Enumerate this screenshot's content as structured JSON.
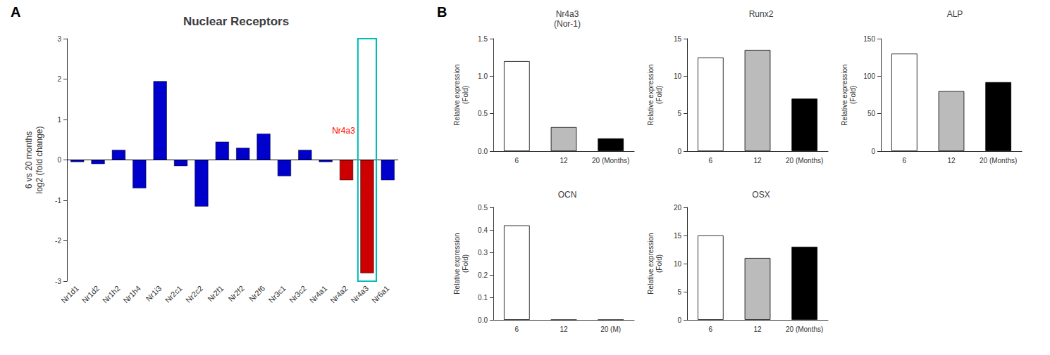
{
  "chart_data": [
    {
      "type": "bar",
      "title": "Nuclear Receptors",
      "ylabel": "6 vs 20 months\nlog2 (fold change)",
      "categories": [
        "Nr1d1",
        "Nr1d2",
        "Nr1h2",
        "Nr1h4",
        "Nr1i3",
        "Nr2c1",
        "Nr2c2",
        "Nr2f1",
        "Nr2f2",
        "Nr2f6",
        "Nr3c1",
        "Nr3c2",
        "Nr4a1",
        "Nr4a2",
        "Nr4a3",
        "Nr6a1"
      ],
      "values": [
        -0.05,
        -0.1,
        0.25,
        -0.7,
        1.95,
        -0.15,
        -1.15,
        0.45,
        0.3,
        0.65,
        -0.4,
        0.25,
        -0.05,
        -0.5,
        -2.8,
        -0.5
      ],
      "colors": [
        "#0000CC",
        "#0000CC",
        "#0000CC",
        "#0000CC",
        "#0000CC",
        "#0000CC",
        "#0000CC",
        "#0000CC",
        "#0000CC",
        "#0000CC",
        "#0000CC",
        "#0000CC",
        "#0000CC",
        "#CC0000",
        "#CC0000",
        "#0000CC"
      ],
      "ylim": [
        -3,
        3
      ],
      "yticks": [
        -3,
        -2,
        -1,
        0,
        1,
        2,
        3
      ],
      "grid": false,
      "annotations": [
        {
          "text": "A"
        },
        {
          "text": "Nr4a3",
          "color": "red",
          "category": "Nr4a3",
          "box_color": "#00BBBB"
        }
      ]
    },
    {
      "type": "bar",
      "title": "Nr4a3\n(Nor-1)",
      "ylabel": "Relative expression\n(Fold)",
      "categories": [
        "6",
        "12",
        "20 (Months)"
      ],
      "values": [
        1.2,
        0.32,
        0.17
      ],
      "colors": [
        "white",
        "#BBBBBB",
        "black"
      ],
      "ylim": [
        0,
        1.5
      ],
      "yticks": [
        {
          "value": 0,
          "label": "0.0"
        },
        0.5,
        {
          "value": 1,
          "label": "1.0"
        },
        1.5
      ],
      "grid": false,
      "annotations": [
        {
          "text": "B"
        }
      ]
    },
    {
      "type": "bar",
      "title": "Runx2",
      "ylabel": "Relative expression\n(Fold)",
      "categories": [
        "6",
        "12",
        "20 (Months)"
      ],
      "values": [
        12.5,
        13.5,
        7.0
      ],
      "colors": [
        "white",
        "#BBBBBB",
        "black"
      ],
      "ylim": [
        0,
        15
      ],
      "yticks": [
        0,
        5,
        10,
        15
      ],
      "grid": false
    },
    {
      "type": "bar",
      "title": "ALP",
      "ylabel": "Relative expression\n(Fold)",
      "categories": [
        "6",
        "12",
        "20 (Months)"
      ],
      "values": [
        130,
        80,
        92
      ],
      "colors": [
        "white",
        "#BBBBBB",
        "black"
      ],
      "ylim": [
        0,
        150
      ],
      "yticks": [
        0,
        50,
        100,
        150
      ],
      "grid": false
    },
    {
      "type": "bar",
      "title": "OCN",
      "ylabel": "Relative expression\n(Fold)",
      "categories": [
        "6",
        "12",
        "20 (M)"
      ],
      "values": [
        0.42,
        0.0,
        0.0
      ],
      "colors": [
        "white",
        "#BBBBBB",
        "black"
      ],
      "ylim": [
        0,
        0.5
      ],
      "yticks": [
        {
          "value": 0,
          "label": "0.0"
        },
        0.1,
        0.2,
        0.3,
        0.4,
        0.5
      ],
      "grid": false
    },
    {
      "type": "bar",
      "title": "OSX",
      "ylabel": "Relative expression\n(Fold)",
      "categories": [
        "6",
        "12",
        "20 (Months)"
      ],
      "values": [
        15.0,
        11.0,
        13.0
      ],
      "colors": [
        "white",
        "#BBBBBB",
        "black"
      ],
      "ylim": [
        0,
        20
      ],
      "yticks": [
        0,
        5,
        10,
        15,
        20
      ],
      "grid": false
    }
  ]
}
